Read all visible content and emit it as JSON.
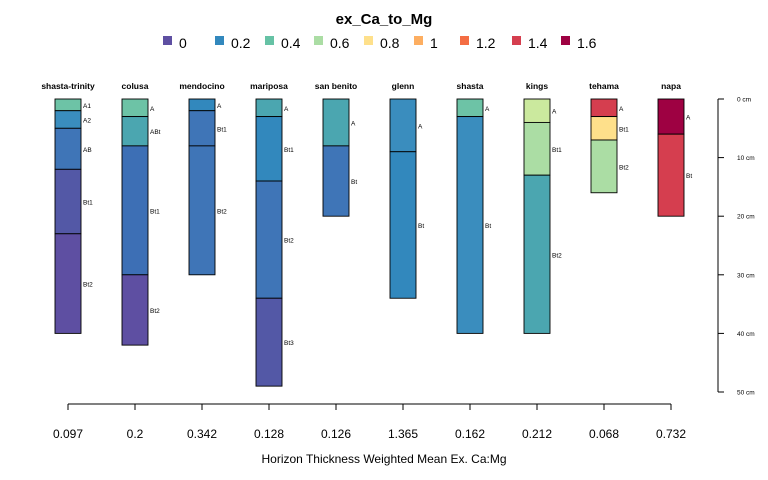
{
  "chart_data": {
    "type": "soil-profile-sketch",
    "title": "ex_Ca_to_Mg",
    "legend": {
      "values": [
        "0",
        "0.2",
        "0.4",
        "0.6",
        "0.8",
        "1",
        "1.2",
        "1.4",
        "1.6"
      ],
      "colors": [
        "#5E4FA2",
        "#3288BD",
        "#66C2A5",
        "#ABDDA4",
        "#FEE08B",
        "#FDAE61",
        "#F46D43",
        "#D53E4F",
        "#9E0142"
      ]
    },
    "depth_axis": {
      "ticks": [
        0,
        10,
        20,
        30,
        40,
        50
      ],
      "tick_labels": [
        "0 cm",
        "10 cm",
        "20 cm",
        "30 cm",
        "40 cm",
        "50 cm"
      ],
      "range": [
        0,
        50
      ]
    },
    "xlabel": "Horizon Thickness Weighted Mean Ex. Ca:Mg",
    "profiles": [
      {
        "name": "shasta-trinity",
        "mean": "0.097",
        "horizons": [
          {
            "name": "A1",
            "top": 0,
            "bottom": 2,
            "color": "#6DC3A6"
          },
          {
            "name": "A2",
            "top": 2,
            "bottom": 5,
            "color": "#3A8DBE"
          },
          {
            "name": "AB",
            "top": 5,
            "bottom": 12,
            "color": "#3F75B7"
          },
          {
            "name": "Bt1",
            "top": 12,
            "bottom": 23,
            "color": "#5358A6"
          },
          {
            "name": "Bt2",
            "top": 23,
            "bottom": 40,
            "color": "#5E4FA2"
          }
        ]
      },
      {
        "name": "colusa",
        "mean": "0.2",
        "horizons": [
          {
            "name": "A",
            "top": 0,
            "bottom": 3,
            "color": "#6DC3A6"
          },
          {
            "name": "ABt",
            "top": 3,
            "bottom": 8,
            "color": "#4BA6B0"
          },
          {
            "name": "Bt1",
            "top": 8,
            "bottom": 30,
            "color": "#3D6FB5"
          },
          {
            "name": "Bt2",
            "top": 30,
            "bottom": 42,
            "color": "#5E4FA2"
          }
        ]
      },
      {
        "name": "mendocino",
        "mean": "0.342",
        "horizons": [
          {
            "name": "A",
            "top": 0,
            "bottom": 2,
            "color": "#3288BD"
          },
          {
            "name": "Bt1",
            "top": 2,
            "bottom": 8,
            "color": "#3F75B7"
          },
          {
            "name": "Bt2",
            "top": 8,
            "bottom": 30,
            "color": "#3F75B7"
          }
        ]
      },
      {
        "name": "mariposa",
        "mean": "0.128",
        "horizons": [
          {
            "name": "A",
            "top": 0,
            "bottom": 3,
            "color": "#4BA6B0"
          },
          {
            "name": "Bt1",
            "top": 3,
            "bottom": 14,
            "color": "#3288BD"
          },
          {
            "name": "Bt2",
            "top": 14,
            "bottom": 34,
            "color": "#3F75B7"
          },
          {
            "name": "Bt3",
            "top": 34,
            "bottom": 49,
            "color": "#5358A6"
          }
        ]
      },
      {
        "name": "san benito",
        "mean": "0.126",
        "horizons": [
          {
            "name": "A",
            "top": 0,
            "bottom": 8,
            "color": "#4BA6B0"
          },
          {
            "name": "Bt",
            "top": 8,
            "bottom": 20,
            "color": "#3F75B7"
          }
        ]
      },
      {
        "name": "glenn",
        "mean": "1.365",
        "horizons": [
          {
            "name": "A",
            "top": 0,
            "bottom": 9,
            "color": "#3A8DBE"
          },
          {
            "name": "Bt",
            "top": 9,
            "bottom": 34,
            "color": "#3288BD"
          }
        ]
      },
      {
        "name": "shasta",
        "mean": "0.162",
        "horizons": [
          {
            "name": "A",
            "top": 0,
            "bottom": 3,
            "color": "#6DC3A6"
          },
          {
            "name": "Bt",
            "top": 3,
            "bottom": 40,
            "color": "#3A8DBE"
          }
        ]
      },
      {
        "name": "kings",
        "mean": "0.212",
        "horizons": [
          {
            "name": "A",
            "top": 0,
            "bottom": 4,
            "color": "#CBE99E"
          },
          {
            "name": "Bt1",
            "top": 4,
            "bottom": 13,
            "color": "#ABDDA4"
          },
          {
            "name": "Bt2",
            "top": 13,
            "bottom": 40,
            "color": "#4BA6B0"
          }
        ]
      },
      {
        "name": "tehama",
        "mean": "0.068",
        "horizons": [
          {
            "name": "A",
            "top": 0,
            "bottom": 3,
            "color": "#D53E4F"
          },
          {
            "name": "Bt1",
            "top": 3,
            "bottom": 7,
            "color": "#FEE08B"
          },
          {
            "name": "Bt2",
            "top": 7,
            "bottom": 16,
            "color": "#ABDDA4"
          }
        ]
      },
      {
        "name": "napa",
        "mean": "0.732",
        "horizons": [
          {
            "name": "A",
            "top": 0,
            "bottom": 6,
            "color": "#9E0142"
          },
          {
            "name": "Bt",
            "top": 6,
            "bottom": 20,
            "color": "#D53E4F"
          }
        ]
      }
    ]
  }
}
